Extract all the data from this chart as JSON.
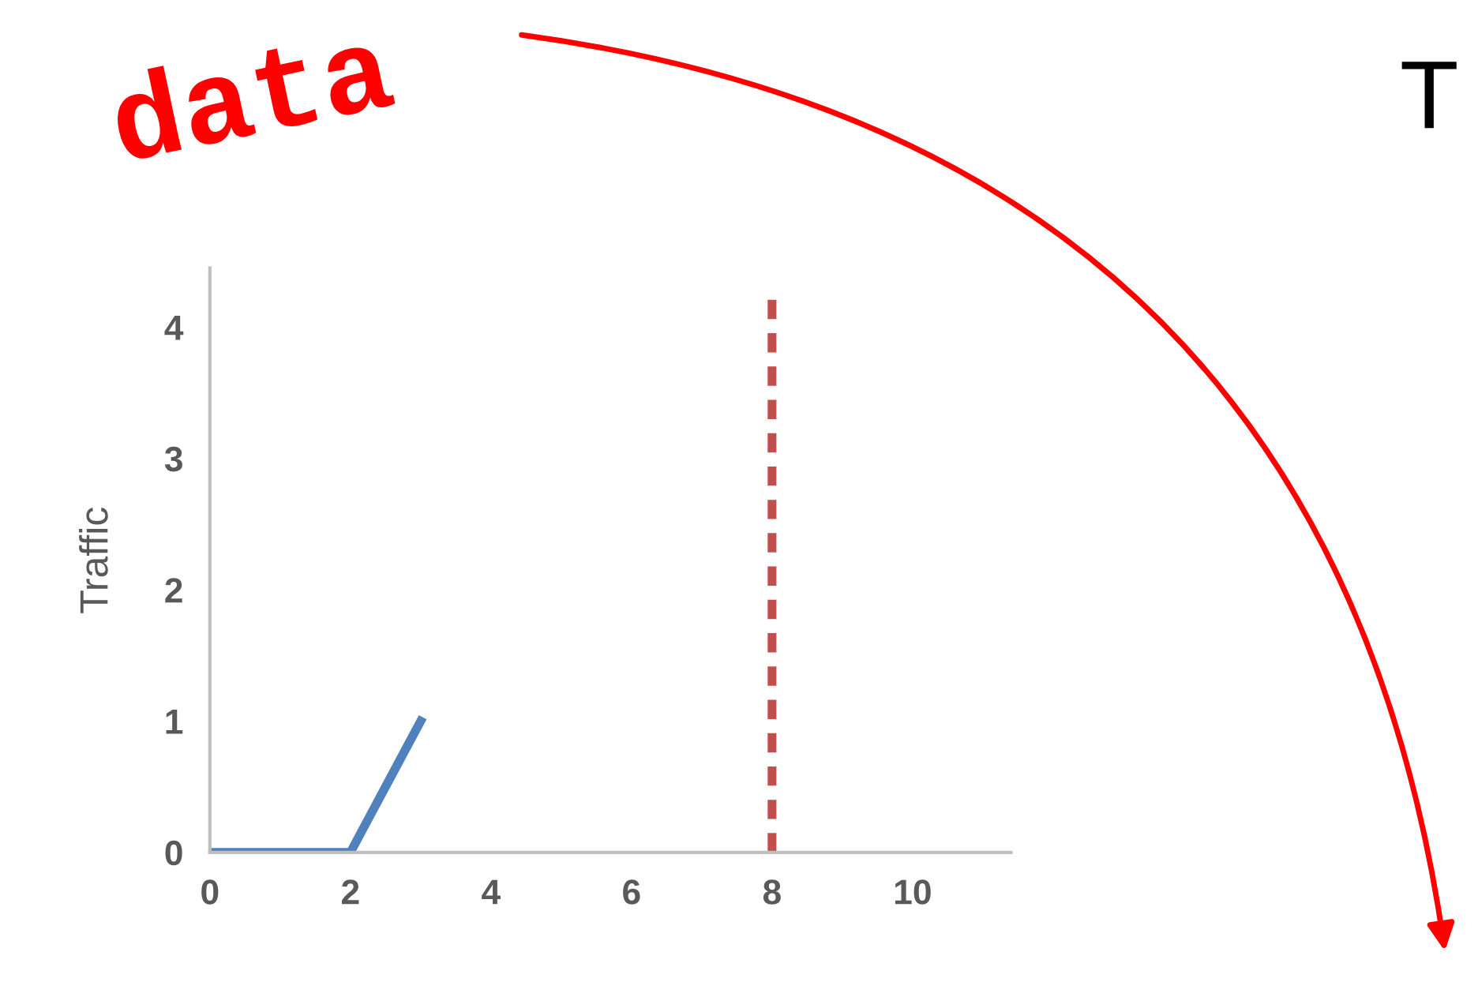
{
  "chart_data": {
    "type": "line",
    "ylabel": "Traffic",
    "x": [
      0,
      2,
      3
    ],
    "series": [
      {
        "color": "#4f81bd",
        "values": [
          0,
          0,
          1
        ]
      }
    ],
    "xlim": [
      0,
      11.4
    ],
    "ylim": [
      0,
      4.45
    ],
    "xticks": [
      0,
      2,
      4,
      6,
      8,
      10
    ],
    "yticks": [
      0,
      1,
      2,
      3,
      4
    ],
    "grid": false,
    "legend": false,
    "marker": "none",
    "line_style": "solid",
    "ref_lines": [
      {
        "axis": "x",
        "value": 8,
        "color": "#c0504d",
        "line_style": "dashed"
      }
    ],
    "annotations": [
      "data",
      "T"
    ]
  }
}
